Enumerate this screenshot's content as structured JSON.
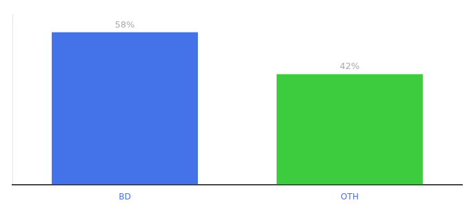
{
  "chart_data": {
    "type": "bar",
    "categories": [
      "BD",
      "OTH"
    ],
    "values": [
      58,
      42
    ],
    "value_labels": [
      "58%",
      "42%"
    ],
    "colors": [
      "#4472e8",
      "#3dcc3d"
    ],
    "ylim": [
      0,
      65
    ],
    "yticks": [],
    "grid": false,
    "data_labels": true,
    "tick_labels": "x"
  }
}
